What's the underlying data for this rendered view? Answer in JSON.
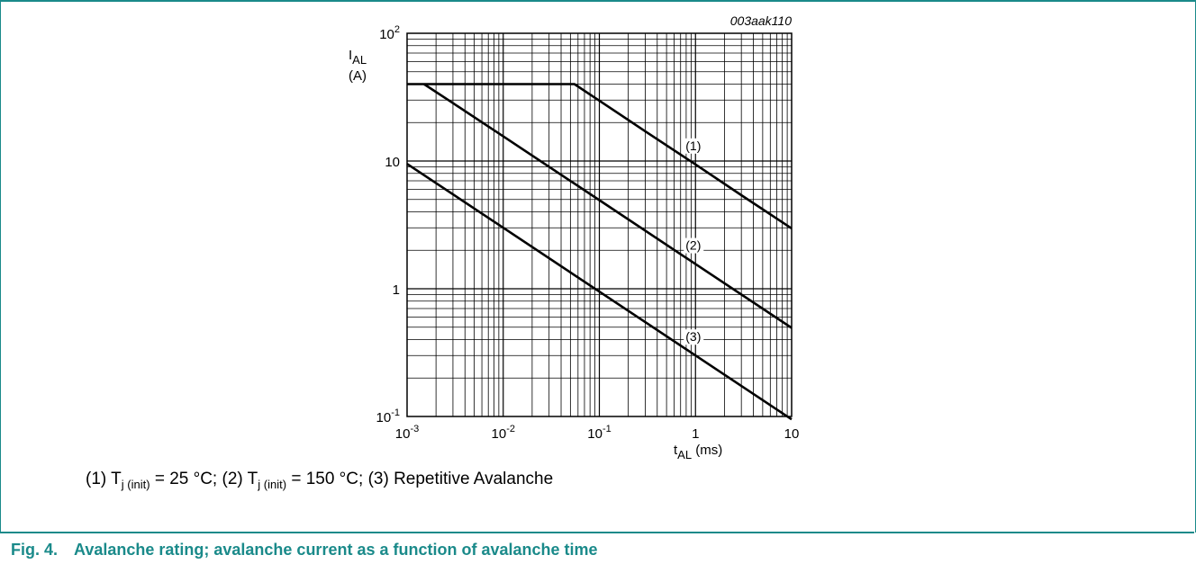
{
  "figure": {
    "id": "003aak110",
    "number": "Fig. 4.",
    "caption": "Avalanche rating; avalanche current as a function of avalanche time",
    "legend_note": {
      "c1_prefix": "(1) T",
      "c1_sub": "j (init)",
      "c1_suffix": " = 25 °C; ",
      "c2_prefix": "(2) T",
      "c2_sub": "j (init)",
      "c2_suffix": " = 150 °C; ",
      "c3": "(3) Repetitive Avalanche"
    }
  },
  "chart_data": {
    "type": "line",
    "title": "",
    "xlabel": "tAL (ms)",
    "ylabel": "IAL (A)",
    "x_scale": "log",
    "y_scale": "log",
    "xlim": [
      0.001,
      10
    ],
    "ylim": [
      0.1,
      100
    ],
    "grid": true,
    "x_ticks": [
      0.001,
      0.01,
      0.1,
      1,
      10
    ],
    "y_ticks": [
      0.1,
      1,
      10,
      100
    ],
    "series": [
      {
        "name": "(1)",
        "color": "#000000",
        "x": [
          0.001,
          0.055,
          0.1,
          0.3,
          1,
          3,
          10
        ],
        "y": [
          40,
          40,
          29.7,
          17.1,
          9.4,
          5.4,
          2.97
        ]
      },
      {
        "name": "(2)",
        "color": "#000000",
        "x": [
          0.0015,
          0.003,
          0.01,
          0.1,
          1,
          10
        ],
        "y": [
          40,
          28.4,
          15.6,
          4.94,
          1.56,
          0.494
        ]
      },
      {
        "name": "(3)",
        "color": "#000000",
        "x": [
          0.001,
          0.01,
          0.1,
          1,
          10
        ],
        "y": [
          9.5,
          3.0,
          0.95,
          0.3,
          0.095
        ]
      }
    ]
  }
}
